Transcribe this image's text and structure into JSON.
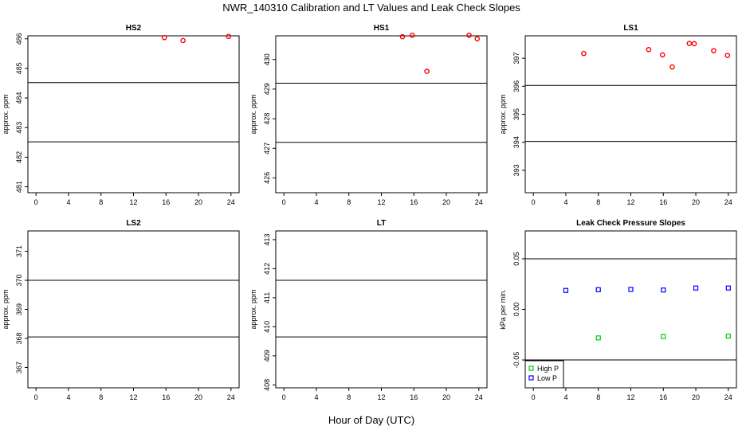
{
  "title": "NWR_140310  Calibration and LT Values and Leak Check Slopes",
  "xlabel_common": "Hour of Day (UTC)",
  "chart_data": [
    {
      "type": "scatter",
      "title": "HS2",
      "ylabel": "approx. ppm",
      "xlim": [
        -1,
        25
      ],
      "ylim": [
        480.8,
        486.1
      ],
      "xticks": [
        0,
        4,
        8,
        12,
        16,
        20,
        24
      ],
      "yticks": [
        481,
        482,
        483,
        484,
        485,
        486
      ],
      "ytick_labels": [
        "481",
        "482",
        "483",
        "484",
        "485",
        "486"
      ],
      "hlines": [
        484.52,
        482.52
      ],
      "series": [
        {
          "color": "#ff0000",
          "marker": "circle",
          "x": [
            15.8,
            18.1,
            23.7
          ],
          "y": [
            486.04,
            485.94,
            486.08
          ]
        }
      ]
    },
    {
      "type": "scatter",
      "title": "HS1",
      "ylabel": "approx. ppm",
      "xlim": [
        -1,
        25
      ],
      "ylim": [
        425.5,
        430.8
      ],
      "xticks": [
        0,
        4,
        8,
        12,
        16,
        20,
        24
      ],
      "yticks": [
        426,
        427,
        428,
        429,
        430
      ],
      "ytick_labels": [
        "426",
        "427",
        "428",
        "429",
        "430"
      ],
      "hlines": [
        429.2,
        427.2
      ],
      "series": [
        {
          "color": "#ff0000",
          "marker": "circle",
          "x": [
            14.6,
            15.8,
            17.6,
            22.8,
            23.8
          ],
          "y": [
            430.77,
            430.82,
            429.6,
            430.82,
            430.7
          ]
        }
      ]
    },
    {
      "type": "scatter",
      "title": "LS1",
      "ylabel": "approx. ppm",
      "xlim": [
        -1,
        25
      ],
      "ylim": [
        392.2,
        397.8
      ],
      "xticks": [
        0,
        4,
        8,
        12,
        16,
        20,
        24
      ],
      "yticks": [
        393,
        394,
        395,
        396,
        397
      ],
      "ytick_labels": [
        "393",
        "394",
        "395",
        "396",
        "397"
      ],
      "hlines": [
        396.03,
        394.03
      ],
      "series": [
        {
          "color": "#ff0000",
          "marker": "circle",
          "x": [
            6.2,
            14.2,
            15.9,
            17.1,
            19.2,
            19.8,
            22.2,
            23.9
          ],
          "y": [
            397.17,
            397.31,
            397.12,
            396.69,
            397.53,
            397.52,
            397.27,
            397.1
          ]
        }
      ]
    },
    {
      "type": "scatter",
      "title": "LS2",
      "ylabel": "approx. ppm",
      "xlim": [
        -1,
        25
      ],
      "ylim": [
        366.3,
        371.7
      ],
      "xticks": [
        0,
        4,
        8,
        12,
        16,
        20,
        24
      ],
      "yticks": [
        367,
        368,
        369,
        370,
        371
      ],
      "ytick_labels": [
        "367",
        "368",
        "369",
        "370",
        "371"
      ],
      "hlines": [
        370.0,
        368.05
      ],
      "series": []
    },
    {
      "type": "scatter",
      "title": "LT",
      "ylabel": "approx. ppm",
      "xlim": [
        -1,
        25
      ],
      "ylim": [
        407.9,
        413.3
      ],
      "xticks": [
        0,
        4,
        8,
        12,
        16,
        20,
        24
      ],
      "yticks": [
        408,
        409,
        410,
        411,
        412,
        413
      ],
      "ytick_labels": [
        "408",
        "409",
        "410",
        "411",
        "412",
        "413"
      ],
      "hlines": [
        411.6,
        409.65
      ],
      "series": []
    },
    {
      "type": "scatter",
      "title": "Leak Check Pressure Slopes",
      "ylabel": "kPa per min.",
      "xlim": [
        -1,
        25
      ],
      "ylim": [
        -0.0775,
        0.0775
      ],
      "xticks": [
        0,
        4,
        8,
        12,
        16,
        20,
        24
      ],
      "yticks": [
        -0.05,
        0.0,
        0.05
      ],
      "ytick_labels": [
        "-0.05",
        "0.00",
        "0.05"
      ],
      "hlines": [
        0.05,
        -0.05
      ],
      "legend_position": "bottom-left",
      "series": [
        {
          "name": "High P",
          "color": "#00cc00",
          "marker": "square",
          "x": [
            8,
            16,
            24
          ],
          "y": [
            -0.0282,
            -0.0268,
            -0.0265
          ]
        },
        {
          "name": "Low P",
          "color": "#0000ff",
          "marker": "square",
          "x": [
            4,
            8,
            12,
            16,
            20,
            24
          ],
          "y": [
            0.0187,
            0.0194,
            0.0197,
            0.0191,
            0.0211,
            0.0211
          ]
        }
      ]
    }
  ]
}
